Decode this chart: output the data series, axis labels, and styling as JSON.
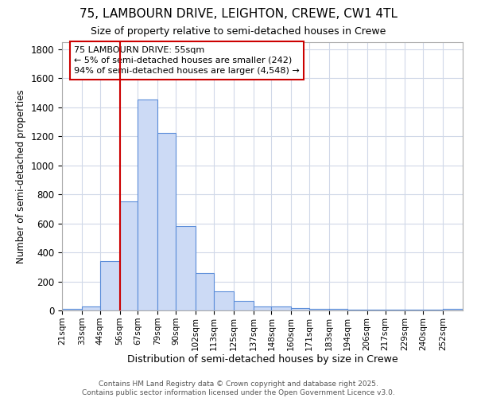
{
  "title1": "75, LAMBOURN DRIVE, LEIGHTON, CREWE, CW1 4TL",
  "title2": "Size of property relative to semi-detached houses in Crewe",
  "xlabel": "Distribution of semi-detached houses by size in Crewe",
  "ylabel": "Number of semi-detached properties",
  "bin_labels": [
    "21sqm",
    "33sqm",
    "44sqm",
    "56sqm",
    "67sqm",
    "79sqm",
    "90sqm",
    "102sqm",
    "113sqm",
    "125sqm",
    "137sqm",
    "148sqm",
    "160sqm",
    "171sqm",
    "183sqm",
    "194sqm",
    "206sqm",
    "217sqm",
    "229sqm",
    "240sqm",
    "252sqm"
  ],
  "bin_edges": [
    21,
    33,
    44,
    56,
    67,
    79,
    90,
    102,
    113,
    125,
    137,
    148,
    160,
    171,
    183,
    194,
    206,
    217,
    229,
    240,
    252
  ],
  "bar_heights": [
    10,
    30,
    340,
    750,
    1450,
    1220,
    580,
    260,
    130,
    65,
    30,
    25,
    15,
    10,
    10,
    5,
    5,
    5,
    5,
    5,
    10
  ],
  "bar_color": "#ccdaf5",
  "bar_edge_color": "#5b8dd9",
  "grid_color": "#d0d8e8",
  "red_line_x": 56,
  "ylim": [
    0,
    1850
  ],
  "yticks": [
    0,
    200,
    400,
    600,
    800,
    1000,
    1200,
    1400,
    1600,
    1800
  ],
  "annotation_title": "75 LAMBOURN DRIVE: 55sqm",
  "annotation_line1": "← 5% of semi-detached houses are smaller (242)",
  "annotation_line2": "94% of semi-detached houses are larger (4,548) →",
  "annotation_box_color": "#ffffff",
  "annotation_box_edge": "#cc0000",
  "footnote1": "Contains HM Land Registry data © Crown copyright and database right 2025.",
  "footnote2": "Contains public sector information licensed under the Open Government Licence v3.0.",
  "bg_color": "#ffffff"
}
